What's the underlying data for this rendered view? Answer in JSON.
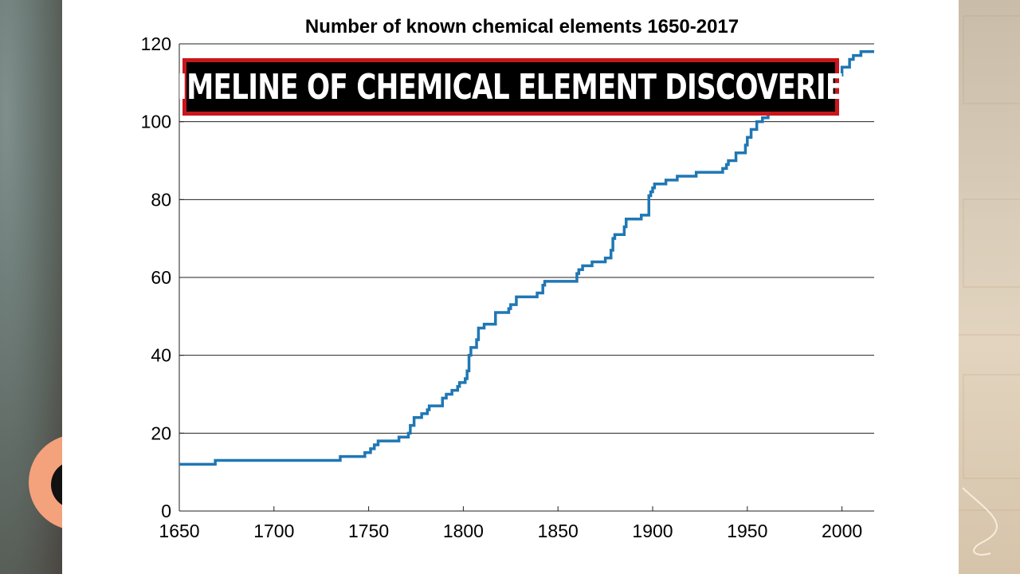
{
  "banner": {
    "text": "TIMELINE OF CHEMICAL ELEMENT DISCOVERIES"
  },
  "colors": {
    "line": "#1f77b4",
    "banner_border": "#c8171c",
    "banner_bg": "#000000",
    "banner_text": "#ffffff"
  },
  "chart_data": {
    "type": "line",
    "step": true,
    "title": "Number of known chemical elements 1650-2017",
    "xlabel": "",
    "ylabel": "",
    "xlim": [
      1650,
      2017
    ],
    "ylim": [
      0,
      120
    ],
    "xticks": [
      1650,
      1700,
      1750,
      1800,
      1850,
      1900,
      1950,
      2000
    ],
    "yticks": [
      0,
      20,
      40,
      60,
      80,
      100,
      120
    ],
    "grid": "horizontal",
    "series": [
      {
        "x": [
          1650,
          1669,
          1735,
          1748,
          1751,
          1753,
          1755,
          1766,
          1771,
          1772,
          1774,
          1778,
          1781,
          1782,
          1789,
          1791,
          1794,
          1797,
          1798,
          1801,
          1802,
          1803,
          1804,
          1807,
          1808,
          1811,
          1817,
          1824,
          1825,
          1828,
          1839,
          1842,
          1843,
          1860,
          1861,
          1863,
          1868,
          1875,
          1878,
          1879,
          1880,
          1885,
          1886,
          1894,
          1898,
          1899,
          1900,
          1901,
          1907,
          1913,
          1923,
          1937,
          1939,
          1940,
          1944,
          1949,
          1950,
          1952,
          1955,
          1958,
          1961,
          1964,
          1970,
          1974,
          1981,
          1982,
          1984,
          1994,
          1996,
          2000,
          2004,
          2006,
          2010,
          2017
        ],
        "y": [
          12,
          13,
          14,
          15,
          16,
          17,
          18,
          19,
          20,
          22,
          24,
          25,
          26,
          27,
          29,
          30,
          31,
          32,
          33,
          34,
          36,
          40,
          42,
          44,
          47,
          48,
          51,
          52,
          53,
          55,
          56,
          58,
          59,
          61,
          62,
          63,
          64,
          65,
          67,
          70,
          71,
          73,
          75,
          76,
          81,
          82,
          83,
          84,
          85,
          86,
          87,
          88,
          89,
          90,
          92,
          94,
          96,
          98,
          100,
          101,
          102,
          104,
          105,
          106,
          107,
          108,
          109,
          111,
          112,
          114,
          116,
          117,
          118,
          118
        ]
      }
    ]
  }
}
